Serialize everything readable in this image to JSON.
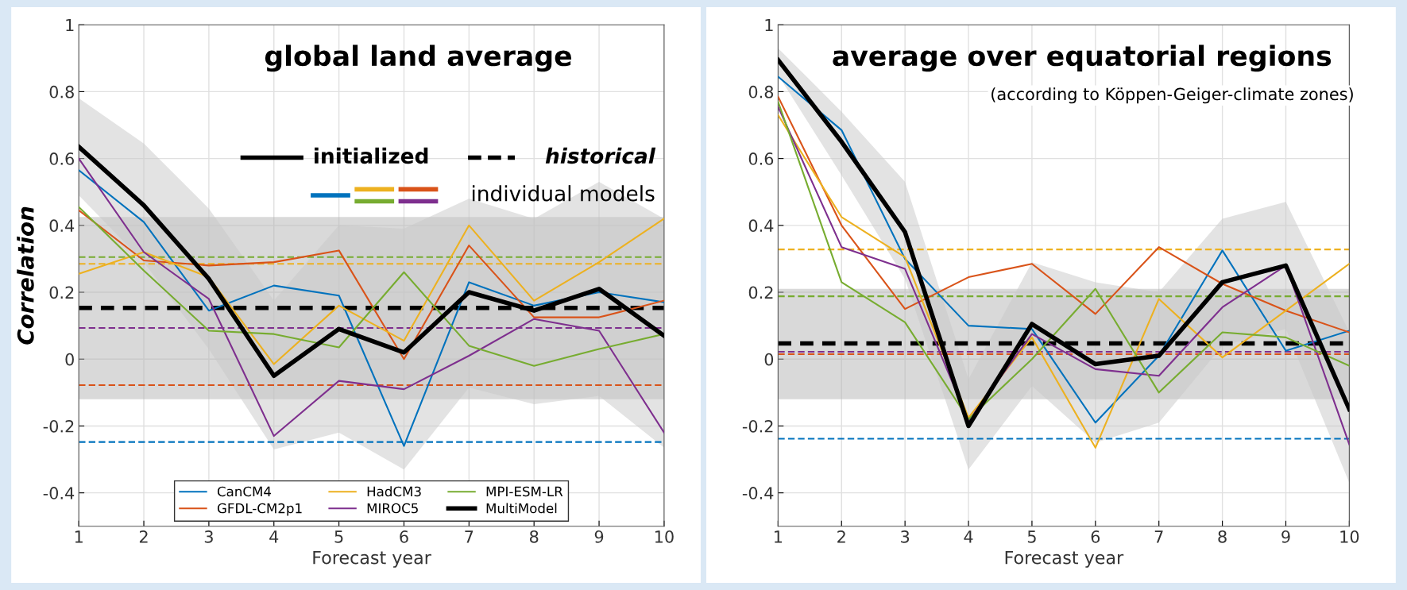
{
  "chart_data": [
    {
      "type": "line",
      "title": "global land average",
      "ylabel": "Correlation",
      "xlabel": "Forecast year",
      "x": [
        1,
        2,
        3,
        4,
        5,
        6,
        7,
        8,
        9,
        10
      ],
      "xlim": [
        1,
        10
      ],
      "xticks": [
        1,
        2,
        3,
        4,
        5,
        6,
        7,
        8,
        9,
        10
      ],
      "ylim": [
        -0.5,
        1
      ],
      "yticks": [
        -0.4,
        -0.2,
        0,
        0.2,
        0.4,
        0.6,
        0.8,
        1
      ],
      "grid": true,
      "legend": "bottom",
      "annotations": [
        "initialized",
        "historical",
        "individual models"
      ],
      "series": [
        {
          "name": "CanCM4",
          "color": "#0072bd",
          "values": [
            0.565,
            0.41,
            0.145,
            0.22,
            0.19,
            -0.26,
            0.23,
            0.16,
            0.2,
            0.17
          ]
        },
        {
          "name": "GFDL-CM2p1",
          "color": "#d95319",
          "values": [
            0.445,
            0.295,
            0.28,
            0.29,
            0.325,
            0.0,
            0.34,
            0.125,
            0.125,
            0.175
          ]
        },
        {
          "name": "HadCM3",
          "color": "#edb120",
          "values": [
            0.255,
            0.32,
            0.245,
            -0.015,
            0.16,
            0.055,
            0.4,
            0.175,
            0.29,
            0.42
          ]
        },
        {
          "name": "MIROC5",
          "color": "#7e2f8e",
          "values": [
            0.6,
            0.32,
            0.18,
            -0.23,
            -0.065,
            -0.09,
            0.01,
            0.12,
            0.085,
            -0.22
          ]
        },
        {
          "name": "MPI-ESM-LR",
          "color": "#77ac30",
          "values": [
            0.455,
            0.265,
            0.085,
            0.075,
            0.035,
            0.26,
            0.04,
            -0.02,
            0.03,
            0.075
          ]
        },
        {
          "name": "MultiModel",
          "color": "#000000",
          "values": [
            0.635,
            0.46,
            0.24,
            -0.05,
            0.09,
            0.02,
            0.2,
            0.145,
            0.21,
            0.07
          ],
          "lower": [
            0.49,
            0.29,
            0.03,
            -0.27,
            -0.22,
            -0.33,
            -0.085,
            -0.135,
            -0.11,
            -0.265
          ],
          "upper": [
            0.78,
            0.645,
            0.45,
            0.175,
            0.4,
            0.39,
            0.48,
            0.42,
            0.53,
            0.42
          ]
        }
      ],
      "bands": [
        {
          "axis": "y",
          "from": -0.12,
          "to": 0.425,
          "color": "#b4b4b4"
        }
      ],
      "ref_lines": [
        {
          "axis": "y",
          "value": 0.305,
          "color": "#77ac30",
          "line_style": "dashed"
        },
        {
          "axis": "y",
          "value": 0.285,
          "color": "#edb120",
          "line_style": "dashed"
        },
        {
          "axis": "y",
          "value": 0.153,
          "color": "#000000",
          "line_style": "dashed"
        },
        {
          "axis": "y",
          "value": 0.093,
          "color": "#7e2f8e",
          "line_style": "dashed"
        },
        {
          "axis": "y",
          "value": -0.078,
          "color": "#d95319",
          "line_style": "dashed"
        },
        {
          "axis": "y",
          "value": -0.248,
          "color": "#0072bd",
          "line_style": "dashed"
        }
      ]
    },
    {
      "type": "line",
      "title": "average over equatorial regions",
      "subtitle": "(according to Köppen-Geiger-climate zones)",
      "xlabel": "Forecast year",
      "x": [
        1,
        2,
        3,
        4,
        5,
        6,
        7,
        8,
        9,
        10
      ],
      "xlim": [
        1,
        10
      ],
      "xticks": [
        1,
        2,
        3,
        4,
        5,
        6,
        7,
        8,
        9,
        10
      ],
      "ylim": [
        -0.5,
        1
      ],
      "yticks": [
        -0.4,
        -0.2,
        0,
        0.2,
        0.4,
        0.6,
        0.8,
        1
      ],
      "grid": true,
      "series": [
        {
          "color": "#0072bd",
          "values": [
            0.845,
            0.685,
            0.3,
            0.1,
            0.09,
            -0.19,
            0.01,
            0.325,
            0.025,
            0.085
          ]
        },
        {
          "color": "#d95319",
          "values": [
            0.785,
            0.4,
            0.15,
            0.245,
            0.285,
            0.135,
            0.335,
            0.225,
            0.145,
            0.08
          ]
        },
        {
          "color": "#edb120",
          "values": [
            0.73,
            0.425,
            0.305,
            -0.175,
            0.065,
            -0.265,
            0.18,
            0.005,
            0.145,
            0.285
          ]
        },
        {
          "color": "#7e2f8e",
          "values": [
            0.755,
            0.335,
            0.27,
            -0.185,
            0.075,
            -0.03,
            -0.05,
            0.155,
            0.28,
            -0.255
          ]
        },
        {
          "color": "#77ac30",
          "values": [
            0.77,
            0.23,
            0.11,
            -0.18,
            0.0,
            0.21,
            -0.1,
            0.08,
            0.065,
            -0.02
          ]
        },
        {
          "color": "#000000",
          "values": [
            0.895,
            0.65,
            0.38,
            -0.2,
            0.105,
            -0.015,
            0.01,
            0.23,
            0.28,
            -0.15
          ],
          "lower": [
            0.85,
            0.55,
            0.24,
            -0.33,
            -0.08,
            -0.25,
            -0.19,
            0.04,
            0.09,
            -0.37
          ],
          "upper": [
            0.93,
            0.74,
            0.53,
            -0.06,
            0.29,
            0.23,
            0.2,
            0.42,
            0.47,
            0.08
          ]
        }
      ],
      "bands": [
        {
          "axis": "y",
          "from": -0.12,
          "to": 0.21,
          "color": "#b4b4b4"
        }
      ],
      "ref_lines": [
        {
          "axis": "y",
          "value": 0.328,
          "color": "#edb120",
          "line_style": "dashed"
        },
        {
          "axis": "y",
          "value": 0.188,
          "color": "#77ac30",
          "line_style": "dashed"
        },
        {
          "axis": "y",
          "value": 0.047,
          "color": "#000000",
          "line_style": "dashed"
        },
        {
          "axis": "y",
          "value": 0.022,
          "color": "#7e2f8e",
          "line_style": "dashed"
        },
        {
          "axis": "y",
          "value": 0.015,
          "color": "#d95319",
          "line_style": "dashed"
        },
        {
          "axis": "y",
          "value": -0.238,
          "color": "#0072bd",
          "line_style": "dashed"
        }
      ]
    }
  ]
}
